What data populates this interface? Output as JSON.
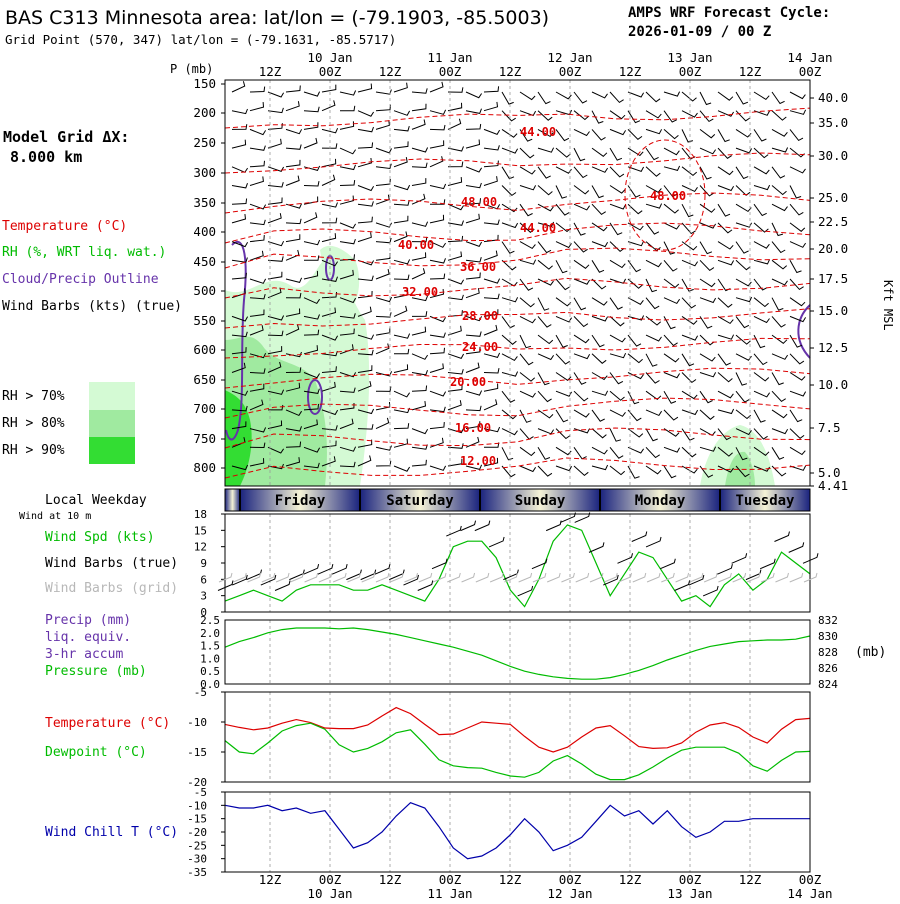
{
  "header": {
    "title": "BAS C313 Minnesota area:  lat/lon = (-79.1903, -85.5003)",
    "subtitle": "Grid Point (570, 347) lat/lon = (-79.1631, -85.5717)",
    "cycle_label": "AMPS WRF Forecast Cycle:",
    "cycle_value": "2026-01-09 / 00  Z"
  },
  "grid": {
    "title": "Model Grid ΔX:",
    "value": "8.000 km"
  },
  "legend": {
    "temperature": "Temperature (°C)",
    "rh": "RH (%, WRT liq. wat.)",
    "cloud": "Cloud/Precip Outline",
    "wind": "Wind Barbs (kts) (true)",
    "rh70": "RH > 70%",
    "rh80": "RH > 80%",
    "rh90": "RH > 90%",
    "rh_colors": [
      "#d4fad4",
      "#a0eaa0",
      "#33dd33"
    ]
  },
  "time_axis": {
    "top_hours": [
      "12Z",
      "00Z",
      "12Z",
      "00Z",
      "12Z",
      "00Z",
      "12Z",
      "00Z",
      "12Z",
      "00Z"
    ],
    "top_dates": [
      "10 Jan",
      "11 Jan",
      "12 Jan",
      "13 Jan",
      "14 Jan"
    ],
    "bottom_hours": [
      "12Z",
      "00Z",
      "12Z",
      "00Z",
      "12Z",
      "00Z",
      "12Z",
      "00Z",
      "12Z",
      "00Z"
    ],
    "bottom_dates": [
      "10 Jan",
      "11 Jan",
      "12 Jan",
      "13 Jan",
      "14 Jan"
    ]
  },
  "weekday_bar": {
    "label": "Local Weekday",
    "wind_note": "Wind at 10 m",
    "days": [
      "Friday",
      "Saturday",
      "Sunday",
      "Monday",
      "Tuesday"
    ]
  },
  "panel_labels": {
    "wind_spd": "Wind Spd (kts)",
    "wind_barbs_true": "Wind Barbs (true)",
    "wind_barbs_grid": "Wind Barbs (grid)",
    "precip1": "Precip (mm)",
    "precip2": "liq. equiv.",
    "precip3": "3-hr accum",
    "pressure": "Pressure (mb)",
    "pressure_unit": "(mb)",
    "temperature": "Temperature (°C)",
    "dewpoint": "Dewpoint (°C)",
    "windchill": "Wind Chill T (°C)"
  },
  "colors": {
    "temperature": "#dd0000",
    "rh_line": "#00bb00",
    "cloud": "#6633aa",
    "wind_spd": "#00bb00",
    "dewpoint": "#00bb00",
    "pressure": "#00bb00",
    "windchill": "#0000aa",
    "weekday_dark": "#1a237e",
    "weekday_light": "#f5f3d6"
  },
  "chart_data": [
    {
      "type": "contour",
      "id": "cross_section",
      "y_axis_label": "P (mb)",
      "pressure_ticks": [
        "150",
        "200",
        "250",
        "300",
        "350",
        "400",
        "450",
        "500",
        "550",
        "600",
        "650",
        "700",
        "750",
        "800"
      ],
      "right_axis_label": "Kft MSL",
      "height_ticks": [
        "40.0",
        "35.0",
        "30.0",
        "25.0",
        "22.5",
        "20.0",
        "17.5",
        "15.0",
        "12.5",
        "10.0",
        "7.5",
        "5.0",
        "4.41"
      ],
      "temperature_labels": [
        "44.00",
        "48.00",
        "48.00",
        "44.00",
        "40.00",
        "36.00",
        "32.00",
        "28.00",
        "24.00",
        "20.00",
        "16.00",
        "12.00"
      ],
      "temperature_label_signs": "printed without minus sign"
    },
    {
      "type": "line",
      "id": "wind_speed",
      "ylim": [
        0,
        18
      ],
      "yticks": [
        "0",
        "3",
        "6",
        "9",
        "12",
        "15",
        "18"
      ],
      "series": [
        {
          "name": "Wind Spd (kts)",
          "values": [
            2,
            3,
            4,
            3,
            2,
            4,
            5,
            5,
            5,
            4,
            4,
            5,
            4,
            3,
            2,
            6,
            12,
            13,
            13,
            10,
            4,
            1,
            6,
            13,
            16,
            15,
            9,
            3,
            7,
            11,
            10,
            6,
            2,
            3,
            1,
            5,
            7,
            4,
            6,
            11,
            9,
            7
          ]
        }
      ]
    },
    {
      "type": "line",
      "id": "precip_pressure",
      "left_ylim": [
        0,
        2.5
      ],
      "left_yticks": [
        "0.0",
        "0.5",
        "1.0",
        "1.5",
        "2.0",
        "2.5"
      ],
      "right_ylim": [
        824,
        832
      ],
      "right_yticks": [
        "824",
        "826",
        "828",
        "830",
        "832"
      ],
      "series": [
        {
          "name": "Pressure (mb)",
          "values": [
            828.6,
            829.3,
            829.8,
            830.4,
            830.8,
            831.0,
            831.0,
            831.0,
            830.9,
            831.0,
            830.8,
            830.5,
            830.2,
            829.8,
            829.4,
            829.0,
            828.6,
            828.1,
            827.6,
            826.9,
            826.2,
            825.6,
            825.2,
            824.9,
            824.7,
            824.6,
            824.6,
            824.8,
            825.2,
            825.7,
            826.3,
            827.0,
            827.6,
            828.2,
            828.7,
            829.0,
            829.3,
            829.4,
            829.5,
            829.5,
            829.6,
            830.0
          ]
        }
      ]
    },
    {
      "type": "line",
      "id": "temperature_dewpoint",
      "ylim": [
        -20,
        -5
      ],
      "yticks": [
        "-5",
        "-10",
        "-15",
        "-20"
      ],
      "series": [
        {
          "name": "Temperature (°C)",
          "values": [
            -10.4,
            -10.9,
            -11.3,
            -11.0,
            -10.2,
            -9.6,
            -10.1,
            -11.0,
            -11.1,
            -11.1,
            -10.5,
            -9.0,
            -7.6,
            -8.6,
            -10.4,
            -12.1,
            -12.0,
            -11.0,
            -10.0,
            -10.2,
            -10.4,
            -12.4,
            -14.2,
            -15.0,
            -14.2,
            -12.5,
            -11.0,
            -10.6,
            -12.3,
            -14.1,
            -14.4,
            -14.3,
            -13.5,
            -11.7,
            -10.5,
            -10.1,
            -10.9,
            -12.5,
            -13.5,
            -11.2,
            -9.6,
            -9.4
          ],
          "note": "Temperature"
        },
        {
          "name": "Dewpoint (°C)",
          "values": [
            -13.1,
            -15.0,
            -15.3,
            -13.5,
            -11.5,
            -10.6,
            -10.2,
            -11.2,
            -13.8,
            -15.0,
            -14.4,
            -13.3,
            -11.8,
            -11.3,
            -13.7,
            -16.3,
            -17.3,
            -17.6,
            -17.7,
            -18.4,
            -19.0,
            -19.2,
            -18.4,
            -16.5,
            -15.6,
            -17.0,
            -18.7,
            -19.6,
            -19.6,
            -18.8,
            -17.5,
            -16.0,
            -14.7,
            -14.2,
            -14.2,
            -14.2,
            -15.2,
            -17.3,
            -18.2,
            -16.4,
            -15.0,
            -14.9
          ]
        }
      ]
    },
    {
      "type": "line",
      "id": "wind_chill",
      "ylim": [
        -35,
        -5
      ],
      "yticks": [
        "-5",
        "-10",
        "-15",
        "-20",
        "-25",
        "-30",
        "-35"
      ],
      "series": [
        {
          "name": "Wind Chill T (°C)",
          "values": [
            -10,
            -11,
            -11,
            -10,
            -12,
            -11,
            -13,
            -12,
            -19,
            -26,
            -24,
            -20,
            -14,
            -9,
            -11,
            -18,
            -26,
            -30,
            -29,
            -26,
            -21,
            -15,
            -20,
            -27,
            -25,
            -22,
            -16,
            -10,
            -14,
            -12,
            -17,
            -12,
            -18,
            -22,
            -20,
            -16,
            -16,
            -15,
            -15,
            -15,
            -15,
            -15
          ]
        }
      ]
    }
  ]
}
